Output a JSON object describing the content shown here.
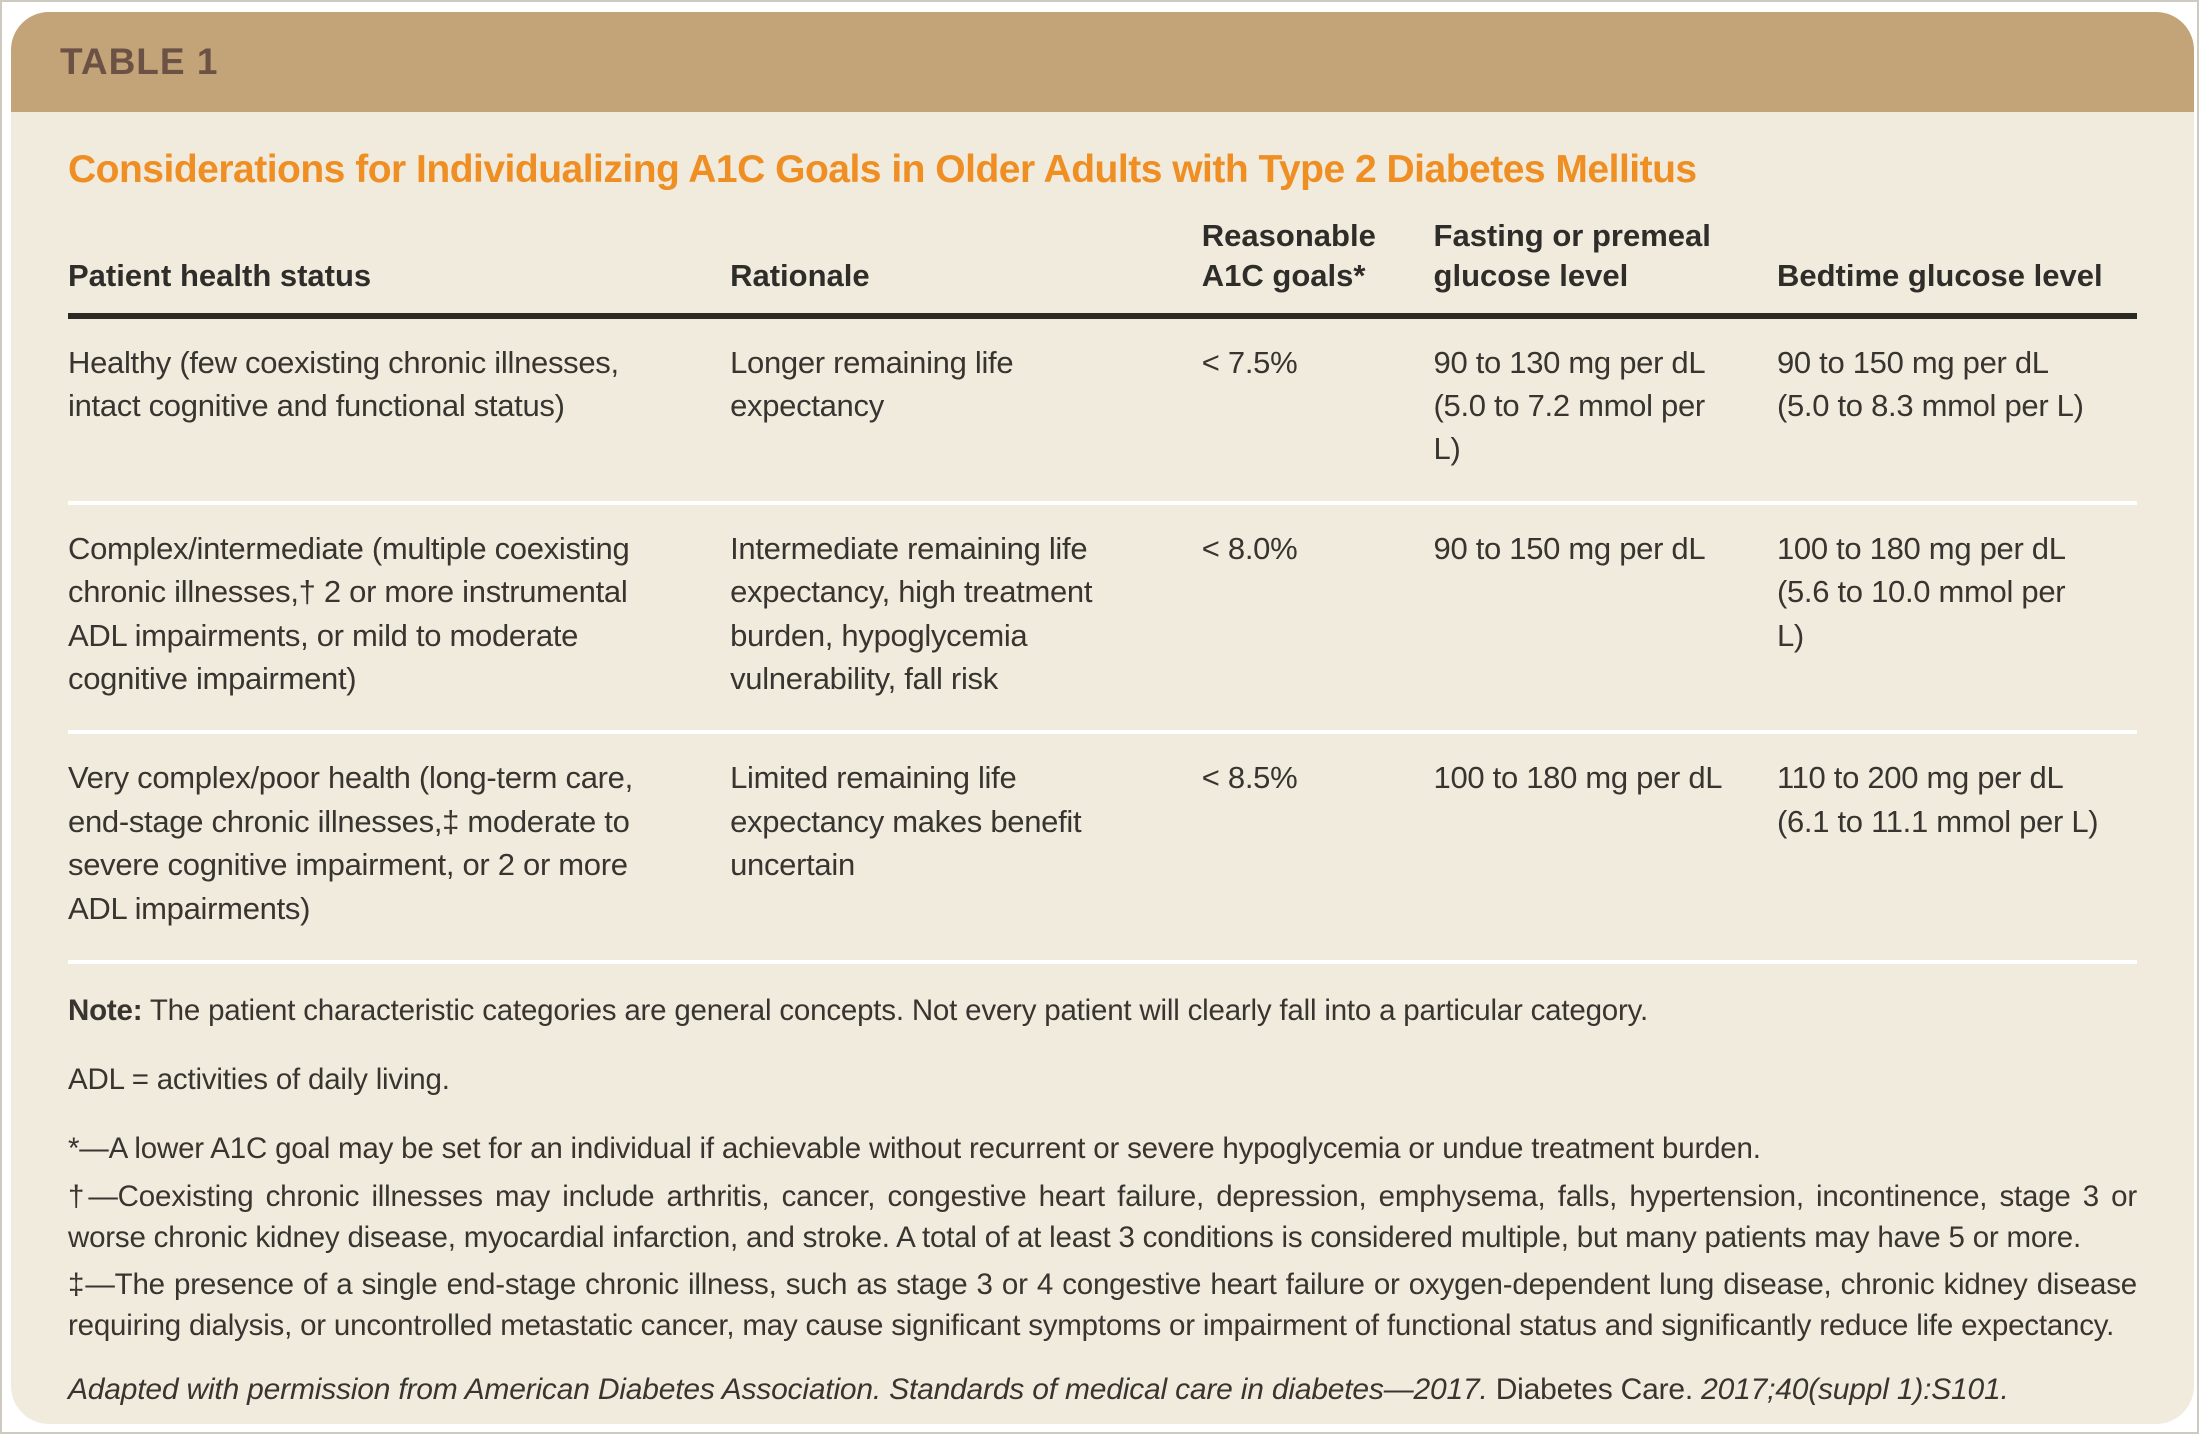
{
  "header": {
    "label": "TABLE 1"
  },
  "title": "Considerations for Individualizing A1C Goals in Older Adults with Type 2 Diabetes Mellitus",
  "table": {
    "columns": [
      {
        "label": "Patient health status"
      },
      {
        "label": "Rationale"
      },
      {
        "label": "Reasonable A1C goals*"
      },
      {
        "label": "Fasting or premeal glucose level"
      },
      {
        "label": "Bedtime glucose level"
      }
    ],
    "rows": [
      {
        "patient_health_status": "Healthy (few coexisting chronic illnesses, intact cognitive and functional status)",
        "rationale": "Longer remaining life expectancy",
        "a1c_goal": "< 7.5%",
        "fasting_glucose": "90 to 130 mg per dL (5.0 to 7.2 mmol per L)",
        "bedtime_glucose": "90 to 150 mg per dL (5.0 to 8.3 mmol per L)"
      },
      {
        "patient_health_status": "Complex/intermediate (multiple coexisting chronic illnesses,† 2 or more instrumental ADL impairments, or mild to moderate cognitive impairment)",
        "rationale": "Intermediate remaining life expectancy, high treatment burden, hypoglycemia vulnerability, fall risk",
        "a1c_goal": "< 8.0%",
        "fasting_glucose": "90 to 150 mg per dL",
        "bedtime_glucose": "100 to 180 mg per dL (5.6 to 10.0 mmol per L)"
      },
      {
        "patient_health_status": "Very complex/poor health (long-term care, end-stage chronic illnesses,‡ moderate to severe cognitive impairment, or 2 or more ADL impairments)",
        "rationale": "Limited remaining life expectancy makes benefit uncertain",
        "a1c_goal": "< 8.5%",
        "fasting_glucose": "100 to 180 mg per dL",
        "bedtime_glucose": "110 to 200 mg per dL (6.1 to 11.1 mmol per L)"
      }
    ]
  },
  "notes": {
    "note_label": "Note:",
    "note_text": " The patient characteristic categories are general concepts. Not every patient will clearly fall into a particular category.",
    "abbreviations": "ADL = activities of daily living.",
    "footnote_star": "*—A lower A1C goal may be set for an individual if achievable without recurrent or severe hypoglycemia or undue treatment burden.",
    "footnote_dagger": "†—Coexisting chronic illnesses may include arthritis, cancer, congestive heart failure, depression, emphysema, falls, hypertension, incontinence, stage 3 or worse chronic kidney disease, myocardial infarction, and stroke. A total of at least 3 conditions is considered multiple, but many patients may have 5 or more.",
    "footnote_double_dagger": "‡—The presence of a single end-stage chronic illness, such as stage 3 or 4 congestive heart failure or oxygen-dependent lung disease, chronic kidney disease requiring dialysis, or uncontrolled metastatic cancer, may cause significant symptoms or impairment of functional status and significantly reduce life expectancy."
  },
  "citation": {
    "italic_part1": "Adapted with permission from American Diabetes Association. Standards of medical care in diabetes—2017.",
    "journal": " Diabetes Care. ",
    "italic_part2": "2017;40(suppl 1):S101."
  },
  "colors": {
    "header_band": "#c3a478",
    "header_label_text": "#6b5244",
    "card_background": "#f1ebdd",
    "title_text": "#ee8e23",
    "body_text": "#383531",
    "header_rule": "#2b2925",
    "row_divider": "#ffffff",
    "page_background": "#ffffff"
  }
}
